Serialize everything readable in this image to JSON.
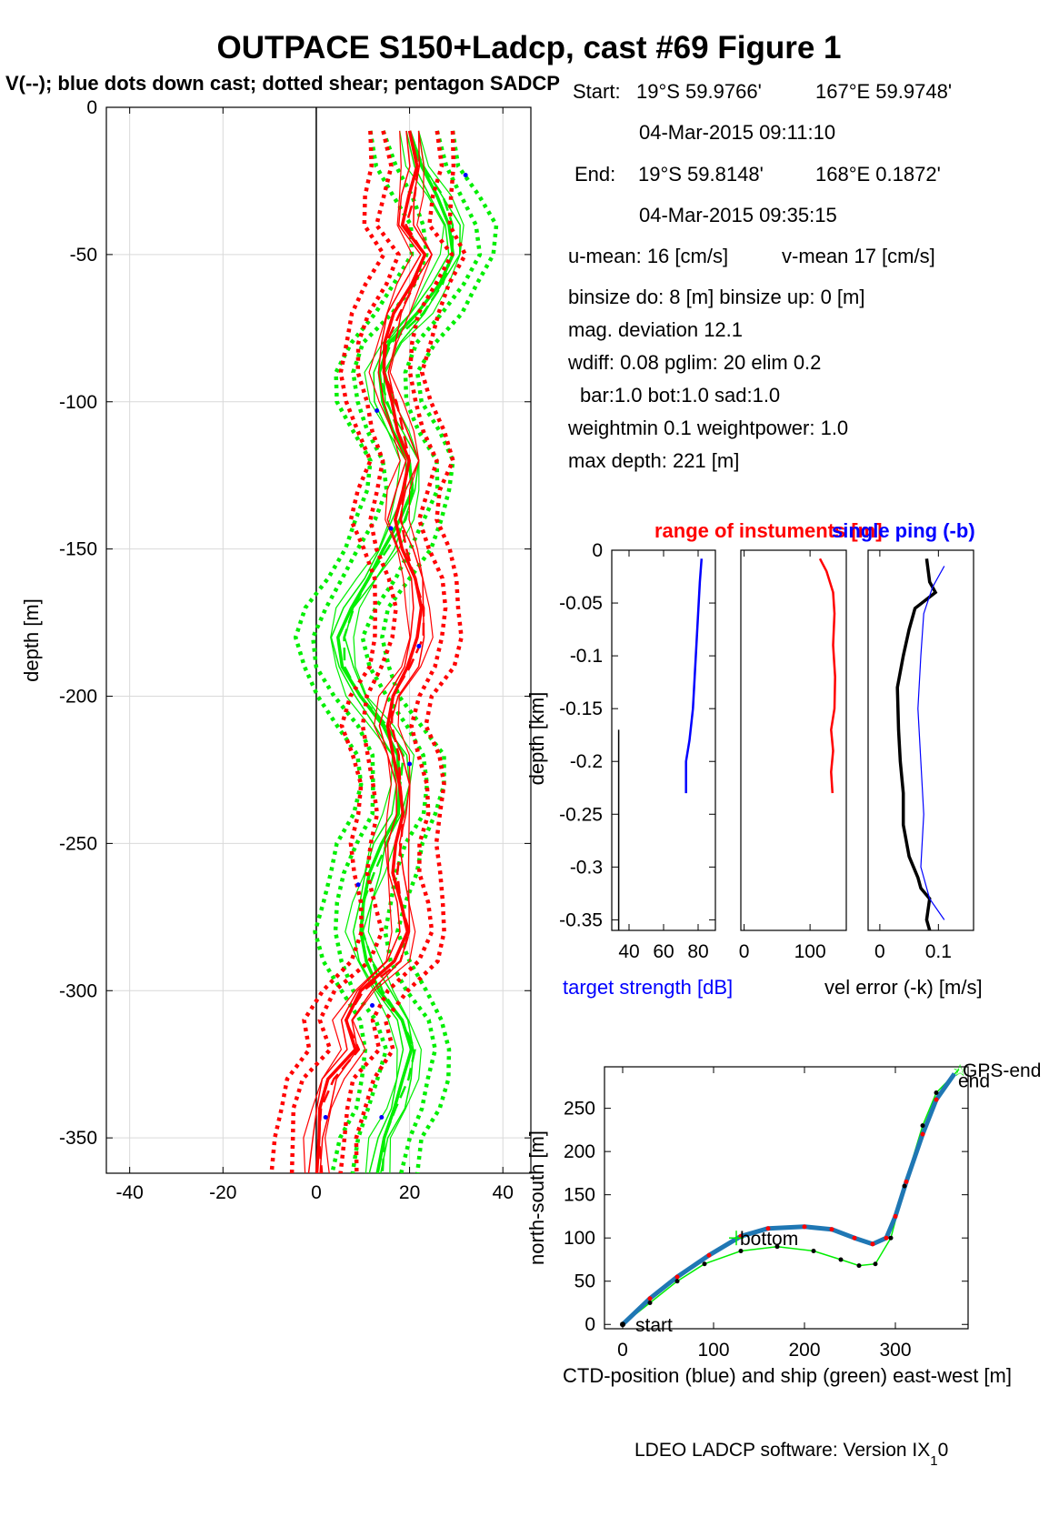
{
  "title": "OUTPACE S150+Ladcp, cast #69  Figure 1",
  "subtitle": "V(--); blue dots down cast; dotted shear; pentagon SADCP",
  "info": {
    "start_label": "Start:",
    "start_lat": "19°S 59.9766'",
    "start_lon": "167°E 59.9748'",
    "start_time": "04-Mar-2015 09:11:10",
    "end_label": "End:",
    "end_lat": "19°S 59.8148'",
    "end_lon": "168°E  0.1872'",
    "end_time": "04-Mar-2015 09:35:15",
    "u_mean": "u-mean:  16 [cm/s]",
    "v_mean": "v-mean  17 [cm/s]",
    "binsize": "binsize do: 8 [m]  binsize up:  0 [m]",
    "mag_dev": "mag. deviation 12.1",
    "wdiff": "wdiff: 0.08  pglim: 20  elim 0.2",
    "bar": "bar:1.0 bot:1.0 sad:1.0",
    "weight": "weightmin 0.1  weightpower: 1.0",
    "max_depth": "max depth: 221 [m]"
  },
  "footer": "LDEO LADCP software: Version IX",
  "footer_sub": "1",
  "footer_end": "0",
  "colors": {
    "red": "#ff0000",
    "green": "#00ee00",
    "blue": "#0000ff",
    "ctd_blue": "#1f77b4",
    "black": "#000000"
  },
  "chart_data": [
    {
      "id": "velocity_profile",
      "type": "line",
      "ylabel": "depth [m]",
      "xlim": [
        -45,
        46
      ],
      "ylim": [
        -362,
        0
      ],
      "xticks": [
        "-40",
        "-20",
        "0",
        "20",
        "40"
      ],
      "xtick_values": [
        -40,
        -20,
        0,
        20,
        40
      ],
      "yticks": [
        "0",
        "-50",
        "-100",
        "-150",
        "-200",
        "-250",
        "-300",
        "-350"
      ],
      "ytick_values": [
        0,
        -50,
        -100,
        -150,
        -200,
        -250,
        -300,
        -350
      ],
      "grid": true,
      "series": [
        {
          "color": "red",
          "points": [
            [
              20,
              -8
            ],
            [
              21,
              -20
            ],
            [
              20,
              -30
            ],
            [
              19,
              -40
            ],
            [
              23,
              -50
            ],
            [
              20,
              -60
            ],
            [
              17,
              -70
            ],
            [
              15,
              -80
            ],
            [
              14,
              -90
            ],
            [
              16,
              -100
            ],
            [
              18,
              -110
            ],
            [
              20,
              -120
            ],
            [
              18,
              -130
            ],
            [
              17,
              -140
            ],
            [
              19,
              -150
            ],
            [
              21,
              -160
            ],
            [
              22,
              -170
            ],
            [
              22,
              -180
            ],
            [
              20,
              -190
            ],
            [
              16,
              -200
            ],
            [
              15,
              -210
            ],
            [
              17,
              -220
            ],
            [
              18,
              -230
            ],
            [
              18,
              -240
            ],
            [
              17,
              -250
            ],
            [
              17,
              -260
            ],
            [
              18,
              -270
            ],
            [
              19,
              -280
            ],
            [
              17,
              -290
            ],
            [
              10,
              -300
            ],
            [
              6,
              -310
            ],
            [
              8,
              -320
            ],
            [
              3,
              -330
            ],
            [
              1,
              -340
            ],
            [
              0,
              -350
            ],
            [
              0,
              -362
            ]
          ]
        },
        {
          "color": "green",
          "points": [
            [
              20,
              -8
            ],
            [
              22,
              -20
            ],
            [
              26,
              -30
            ],
            [
              29,
              -40
            ],
            [
              29,
              -50
            ],
            [
              26,
              -60
            ],
            [
              22,
              -70
            ],
            [
              16,
              -80
            ],
            [
              13,
              -90
            ],
            [
              14,
              -100
            ],
            [
              17,
              -110
            ],
            [
              20,
              -120
            ],
            [
              20,
              -130
            ],
            [
              18,
              -140
            ],
            [
              15,
              -150
            ],
            [
              11,
              -160
            ],
            [
              7,
              -170
            ],
            [
              5,
              -180
            ],
            [
              6,
              -190
            ],
            [
              9,
              -200
            ],
            [
              14,
              -210
            ],
            [
              18,
              -220
            ],
            [
              18,
              -230
            ],
            [
              17,
              -240
            ],
            [
              14,
              -250
            ],
            [
              12,
              -260
            ],
            [
              10,
              -270
            ],
            [
              9,
              -280
            ],
            [
              11,
              -290
            ],
            [
              14,
              -300
            ],
            [
              18,
              -310
            ],
            [
              20,
              -320
            ],
            [
              19,
              -330
            ],
            [
              17,
              -340
            ],
            [
              14,
              -350
            ],
            [
              13,
              -362
            ]
          ]
        }
      ],
      "blue_dots": [
        [
          32,
          -23
        ],
        [
          13,
          -103
        ],
        [
          16,
          -143
        ],
        [
          22,
          -183
        ],
        [
          20,
          -223
        ],
        [
          9,
          -264
        ],
        [
          12,
          -305
        ],
        [
          2,
          -343
        ],
        [
          14,
          -343
        ]
      ]
    },
    {
      "id": "target_strength",
      "type": "line",
      "title": "range of instuments [m]",
      "ylabel": "depth [km]",
      "xlabel": "target strength [dB]",
      "xlim": [
        30,
        90
      ],
      "ylim": [
        -0.36,
        0
      ],
      "xticks": [
        "40",
        "60",
        "80"
      ],
      "xtick_values": [
        40,
        60,
        80
      ],
      "yticks": [
        "0",
        "-0.05",
        "-0.1",
        "-0.15",
        "-0.2",
        "-0.25",
        "-0.3",
        "-0.35"
      ],
      "ytick_values": [
        0,
        -0.05,
        -0.1,
        -0.15,
        -0.2,
        -0.25,
        -0.3,
        -0.35
      ],
      "series": [
        {
          "color": "blue",
          "points": [
            [
              82,
              -0.008
            ],
            [
              81,
              -0.03
            ],
            [
              80,
              -0.06
            ],
            [
              79,
              -0.09
            ],
            [
              78,
              -0.12
            ],
            [
              77,
              -0.15
            ],
            [
              75,
              -0.18
            ],
            [
              73,
              -0.2
            ],
            [
              73,
              -0.23
            ]
          ]
        },
        {
          "color": "black",
          "points": [
            [
              34,
              -0.17
            ],
            [
              34,
              -0.36
            ]
          ]
        }
      ]
    },
    {
      "id": "range",
      "type": "line",
      "xlim": [
        -5,
        155
      ],
      "ylim": [
        -0.36,
        0
      ],
      "xticks": [
        "0",
        "100"
      ],
      "xtick_values": [
        0,
        100
      ],
      "series": [
        {
          "color": "red",
          "points": [
            [
              115,
              -0.008
            ],
            [
              125,
              -0.02
            ],
            [
              135,
              -0.04
            ],
            [
              137,
              -0.06
            ],
            [
              135,
              -0.09
            ],
            [
              138,
              -0.12
            ],
            [
              137,
              -0.15
            ],
            [
              132,
              -0.17
            ],
            [
              135,
              -0.19
            ],
            [
              132,
              -0.21
            ],
            [
              134,
              -0.23
            ]
          ]
        }
      ]
    },
    {
      "id": "vel_error",
      "type": "line",
      "title": "single ping (-b)",
      "xlabel": "vel error (-k) [m/s]",
      "xlim": [
        -0.02,
        0.16
      ],
      "ylim": [
        -0.36,
        0
      ],
      "xticks": [
        "0",
        "0.1"
      ],
      "xtick_values": [
        0,
        0.1
      ],
      "series": [
        {
          "color": "black",
          "points": [
            [
              0.08,
              -0.008
            ],
            [
              0.085,
              -0.03
            ],
            [
              0.095,
              -0.04
            ],
            [
              0.06,
              -0.055
            ],
            [
              0.05,
              -0.075
            ],
            [
              0.04,
              -0.1
            ],
            [
              0.03,
              -0.13
            ],
            [
              0.032,
              -0.17
            ],
            [
              0.035,
              -0.2
            ],
            [
              0.04,
              -0.23
            ],
            [
              0.04,
              -0.26
            ],
            [
              0.05,
              -0.29
            ],
            [
              0.065,
              -0.31
            ],
            [
              0.07,
              -0.32
            ],
            [
              0.085,
              -0.33
            ],
            [
              0.08,
              -0.35
            ],
            [
              0.085,
              -0.36
            ]
          ]
        },
        {
          "color": "blue",
          "points": [
            [
              0.11,
              -0.015
            ],
            [
              0.09,
              -0.035
            ],
            [
              0.075,
              -0.06
            ],
            [
              0.07,
              -0.1
            ],
            [
              0.065,
              -0.15
            ],
            [
              0.07,
              -0.2
            ],
            [
              0.075,
              -0.25
            ],
            [
              0.07,
              -0.3
            ],
            [
              0.085,
              -0.33
            ],
            [
              0.11,
              -0.35
            ]
          ]
        }
      ]
    },
    {
      "id": "ctd_track",
      "type": "line",
      "xlabel": "CTD-position (blue) and ship (green) east-west [m]",
      "ylabel": "north-south [m]",
      "xlim": [
        -20,
        380
      ],
      "ylim": [
        -5,
        298
      ],
      "xticks": [
        "0",
        "100",
        "200",
        "300"
      ],
      "xtick_values": [
        0,
        100,
        200,
        300
      ],
      "yticks": [
        "0",
        "50",
        "100",
        "150",
        "200",
        "250"
      ],
      "ytick_values": [
        0,
        50,
        100,
        150,
        200,
        250
      ],
      "series": [
        {
          "color": "ctd_blue",
          "points": [
            [
              0,
              0
            ],
            [
              30,
              30
            ],
            [
              60,
              55
            ],
            [
              95,
              80
            ],
            [
              130,
              102
            ],
            [
              160,
              111
            ],
            [
              200,
              113
            ],
            [
              230,
              110
            ],
            [
              255,
              100
            ],
            [
              275,
              93
            ],
            [
              290,
              100
            ],
            [
              300,
              125
            ],
            [
              312,
              165
            ],
            [
              330,
              220
            ],
            [
              345,
              260
            ],
            [
              365,
              290
            ]
          ]
        },
        {
          "color": "green",
          "points": [
            [
              0,
              0
            ],
            [
              30,
              25
            ],
            [
              60,
              50
            ],
            [
              90,
              70
            ],
            [
              130,
              85
            ],
            [
              170,
              90
            ],
            [
              210,
              85
            ],
            [
              240,
              75
            ],
            [
              260,
              68
            ],
            [
              278,
              70
            ],
            [
              295,
              100
            ],
            [
              310,
              160
            ],
            [
              330,
              230
            ],
            [
              345,
              268
            ],
            [
              370,
              295
            ]
          ]
        }
      ],
      "labels": [
        {
          "text": "start",
          "x": 10,
          "y": 0
        },
        {
          "text": "bottom",
          "x": 125,
          "y": 100
        },
        {
          "text": "GPS-end",
          "x": 370,
          "y": 295
        },
        {
          "text": "end",
          "x": 365,
          "y": 283
        }
      ]
    }
  ]
}
